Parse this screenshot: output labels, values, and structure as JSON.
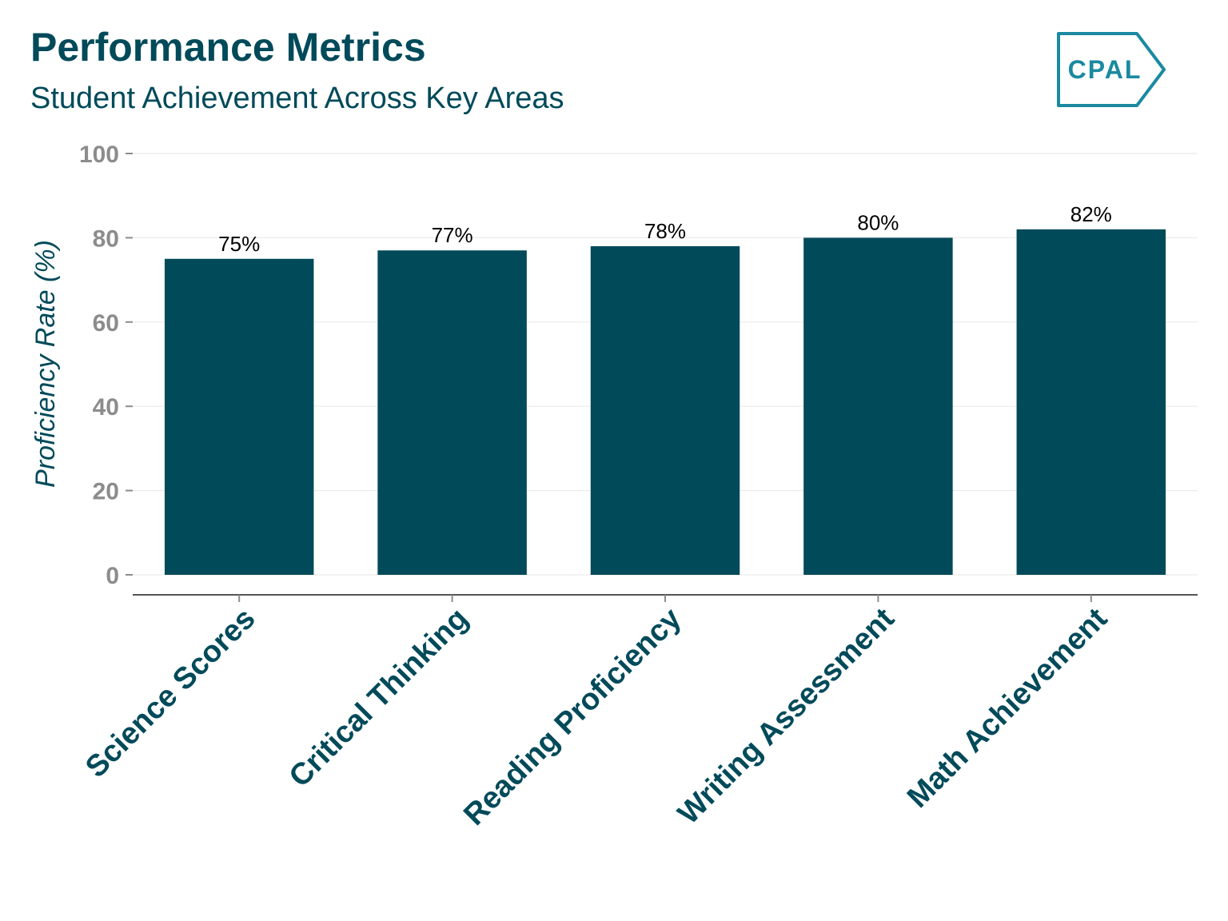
{
  "header": {
    "title": "Performance Metrics",
    "subtitle": "Student Achievement Across Key Areas",
    "logo_text": "CPAL"
  },
  "colors": {
    "bar": "#004a5a",
    "title": "#004a5a",
    "tick_label": "#8c8c8c",
    "grid": "#ebebeb",
    "logo": "#1a8aa0"
  },
  "chart_data": {
    "type": "bar",
    "categories": [
      "Science Scores",
      "Critical Thinking",
      "Reading Proficiency",
      "Writing Assessment",
      "Math Achievement"
    ],
    "values": [
      75,
      77,
      78,
      80,
      82
    ],
    "data_labels": [
      "75%",
      "77%",
      "78%",
      "80%",
      "82%"
    ],
    "xlabel": "",
    "ylabel": "Proficiency Rate (%)",
    "ylim": [
      0,
      100
    ],
    "yticks": [
      0,
      20,
      40,
      60,
      80,
      100
    ],
    "grid": true,
    "legend": "none"
  }
}
